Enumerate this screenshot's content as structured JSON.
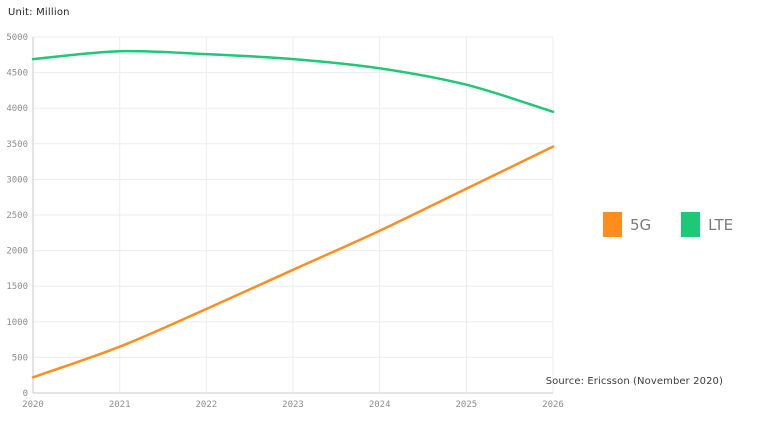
{
  "unit_label": "Unit: Million",
  "source_label": "Source: Ericsson (November 2020)",
  "legend": [
    {
      "name": "5G",
      "color": "#FD8E1E"
    },
    {
      "name": "LTE",
      "color": "#1EC877"
    }
  ],
  "colors": {
    "grid": "#ededed",
    "axis": "#c8c8c8",
    "tick_text": "#8e8e8e",
    "series_5g": "#FD8E1E",
    "series_lte": "#1EC877"
  },
  "chart_data": {
    "type": "line",
    "title": "",
    "xlabel": "",
    "ylabel": "Unit: Million",
    "x": [
      2020,
      2021,
      2022,
      2023,
      2024,
      2025,
      2026
    ],
    "series": [
      {
        "name": "5G",
        "color": "#FD8E1E",
        "values": [
          220,
          650,
          1180,
          1730,
          2280,
          2870,
          3460
        ]
      },
      {
        "name": "LTE",
        "color": "#1EC877",
        "values": [
          4690,
          4800,
          4760,
          4690,
          4560,
          4330,
          3950
        ]
      }
    ],
    "ylim": [
      0,
      5000
    ],
    "y_ticks": [
      0,
      500,
      1000,
      1500,
      2000,
      2500,
      3000,
      3500,
      4000,
      4500,
      5000
    ],
    "grid": true,
    "legend_position": "right"
  }
}
